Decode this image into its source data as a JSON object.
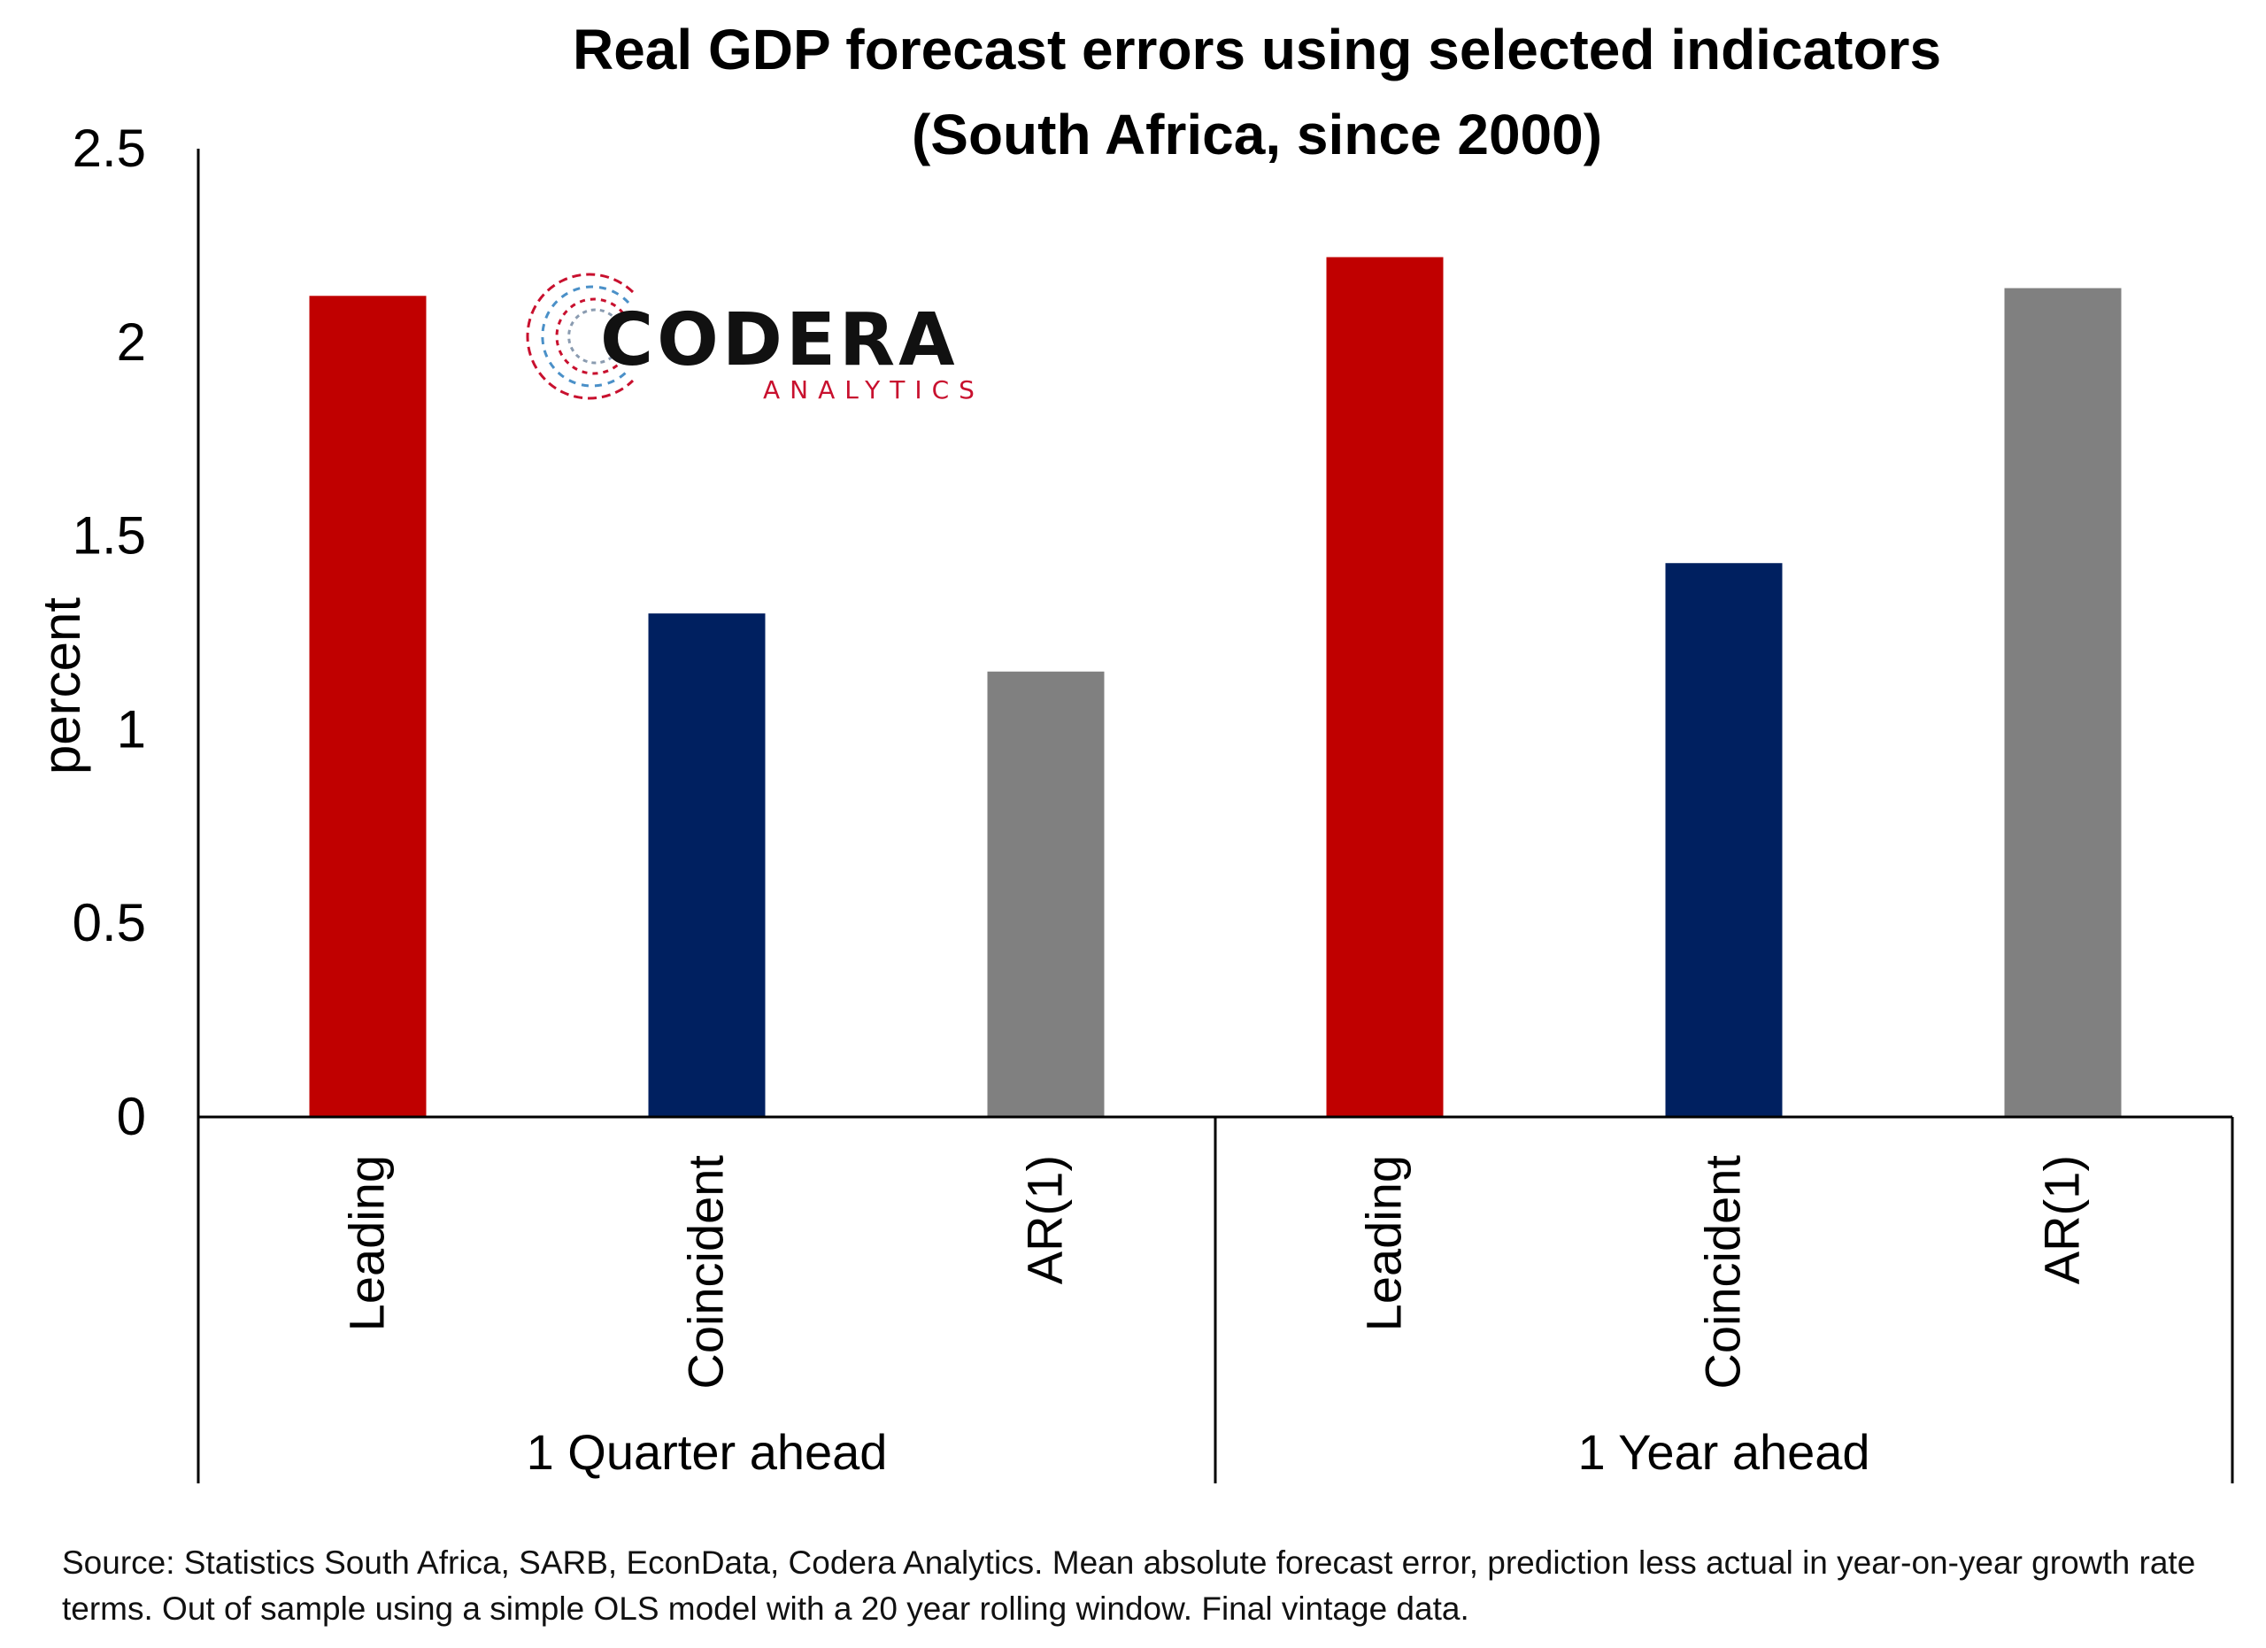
{
  "chart_data": {
    "type": "bar",
    "title": [
      "Real GDP forecast errors using selected indicators",
      "(South Africa, since 2000)"
    ],
    "ylabel": "percent",
    "ylim": [
      0,
      2.5
    ],
    "yticks": [
      "0",
      "0.5",
      "1",
      "1.5",
      "2",
      "2.5"
    ],
    "grid": false,
    "groups": [
      {
        "label": "1 Quarter ahead",
        "categories": [
          "Leading",
          "Coincident",
          "AR(1)"
        ],
        "values": [
          2.12,
          1.3,
          1.15
        ]
      },
      {
        "label": "1 Year ahead",
        "categories": [
          "Leading",
          "Coincident",
          "AR(1)"
        ],
        "values": [
          2.22,
          1.43,
          2.14
        ]
      }
    ],
    "colors": {
      "Leading": "#C00000",
      "Coincident": "#002060",
      "AR(1)": "#808080"
    }
  },
  "logo": {
    "name": "CODERA",
    "sub": "ANALYTICS",
    "accent_red": "#C8102E",
    "accent_blue": "#4A90C8"
  },
  "source_note": "Source: Statistics South Africa, SARB, EconData, Codera Analytics. Mean absolute forecast error, prediction less actual in year-on-year growth rate terms. Out of sample using a simple OLS model with a 20 year rolling window. Final vintage data."
}
